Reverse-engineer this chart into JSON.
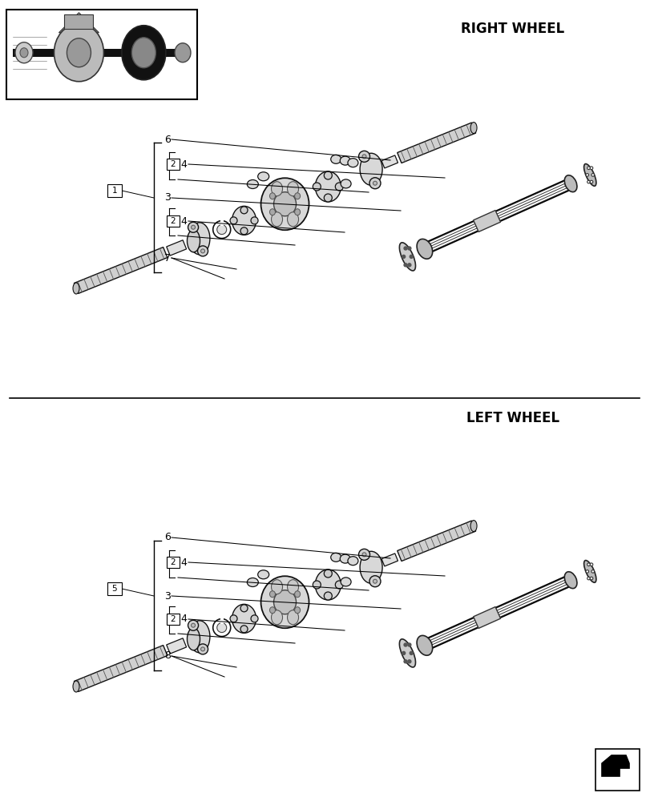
{
  "bg_color": "#ffffff",
  "title_right": "RIGHT WHEEL",
  "title_left": "LEFT WHEEL",
  "title_fontsize": 12,
  "label_fontsize": 9,
  "number_fontsize": 8,
  "line_color": "#000000",
  "part_edge": "#111111",
  "part_face": "#e8e8e8",
  "part_face2": "#d0d0d0",
  "part_face3": "#c0c0c0"
}
